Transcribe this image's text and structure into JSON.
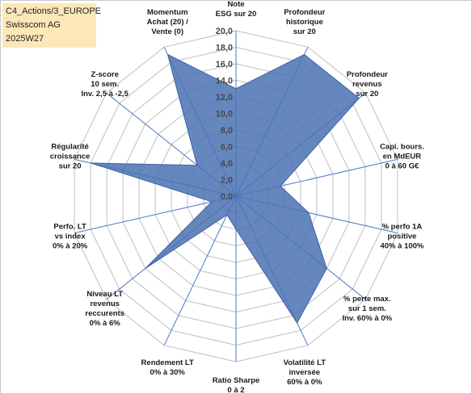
{
  "header": {
    "line1": "C4_Actions/3_EUROPE",
    "line2": "Swisscom AG",
    "line3": "2025W27"
  },
  "colors": {
    "fill": "#4a72b3",
    "stroke": "#3d63a6",
    "grid": "#bfbfbf",
    "spoke": "#4a7ac4",
    "title_bg": "#fce7b8"
  },
  "chart_data": {
    "type": "radar",
    "rmin": 0,
    "rmax": 20,
    "ticks": [
      "0,0",
      "2,0",
      "4,0",
      "6,0",
      "8,0",
      "10,0",
      "12,0",
      "14,0",
      "16,0",
      "18,0",
      "20,0"
    ],
    "grid": true,
    "axes": [
      {
        "label": [
          "Note",
          "ESG sur 20"
        ],
        "value": 13
      },
      {
        "label": [
          "Profondeur",
          "historique",
          "sur 20"
        ],
        "value": 19
      },
      {
        "label": [
          "Profondeur",
          "revenus",
          "sur 20"
        ],
        "value": 19
      },
      {
        "label": [
          "Capi. bours.",
          "en MdEUR",
          "0 à 60 G€"
        ],
        "value": 5.5
      },
      {
        "label": [
          "% perfo 1A",
          "positive",
          "40% à 100%"
        ],
        "value": 9
      },
      {
        "label": [
          "% perte max.",
          "sur 1 sem.",
          "Inv. 60% à 0%"
        ],
        "value": 14
      },
      {
        "label": [
          "Volatilité LT",
          "inversée",
          "60% à 0%"
        ],
        "value": 17
      },
      {
        "label": [
          "Ratio Sharpe",
          "0 à 2"
        ],
        "value": 4
      },
      {
        "label": [
          "Rendement LT",
          "0% à 30%"
        ],
        "value": 2.5
      },
      {
        "label": [
          "Niveau LT",
          "revenus",
          "reccurents",
          "0% à 6%"
        ],
        "value": 14
      },
      {
        "label": [
          "Perfo. LT",
          "vs index",
          "0% à 20%"
        ],
        "value": 3
      },
      {
        "label": [
          "Régularité",
          "croissance",
          "sur 20"
        ],
        "value": 18
      },
      {
        "label": [
          "Z-score",
          "10 sem.",
          "Inv. 2,5 à -2,5"
        ],
        "value": 6
      },
      {
        "label": [
          "Momentum",
          "Achat (20) /",
          "Vente (0)"
        ],
        "value": 19
      }
    ]
  }
}
